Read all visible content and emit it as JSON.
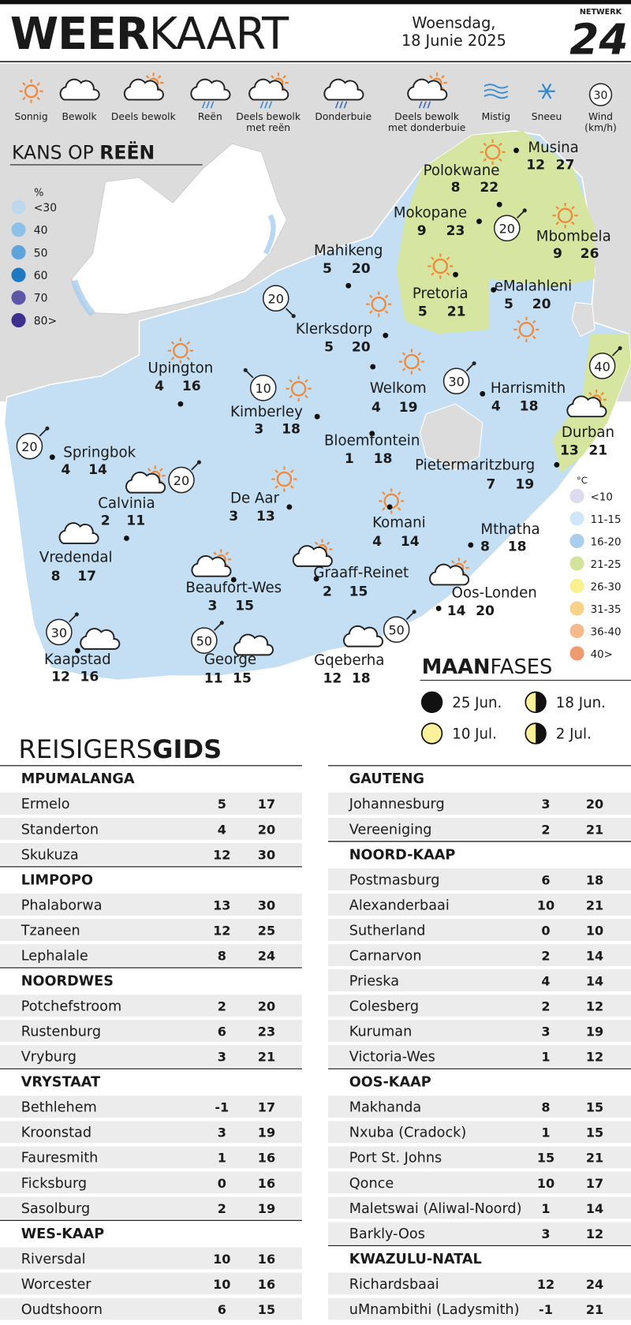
{
  "header": {
    "title_bold": "WEER",
    "title_light": "KAART",
    "date_line1": "Woensdag,",
    "date_line2": "18 Junie 2025",
    "brand_top": "NETWERK",
    "brand_number": "24"
  },
  "icon_legend": [
    {
      "label": [
        "Sonnig"
      ]
    },
    {
      "label": [
        "Bewolk"
      ]
    },
    {
      "label": [
        "Deels bewolk"
      ]
    },
    {
      "label": [
        "Reën"
      ]
    },
    {
      "label": [
        "Deels bewolk",
        "met reën"
      ]
    },
    {
      "label": [
        "Donderbuie"
      ]
    },
    {
      "label": [
        "Deels bewolk",
        "met donderbuie"
      ]
    },
    {
      "label": [
        "Mistig"
      ]
    },
    {
      "label": [
        "Sneeu"
      ]
    },
    {
      "label": [
        "Wind",
        "(km/h)"
      ],
      "sample": "30"
    }
  ],
  "rain_legend": {
    "title_light": "KANS OP ",
    "title_bold": "REËN",
    "unit": "%",
    "levels": [
      "<30",
      "40",
      "50",
      "60",
      "70",
      "80>"
    ]
  },
  "temp_legend": {
    "unit": "°C",
    "levels": [
      "<10",
      "11-15",
      "16-20",
      "21-25",
      "26-30",
      "31-35",
      "36-40",
      "40>"
    ]
  },
  "cities": [
    {
      "name": "Musina",
      "min": 12,
      "max": 27
    },
    {
      "name": "Polokwane",
      "min": 8,
      "max": 22
    },
    {
      "name": "Mokopane",
      "min": 9,
      "max": 23
    },
    {
      "name": "Mbombela",
      "min": 9,
      "max": 26
    },
    {
      "name": "Mahikeng",
      "min": 5,
      "max": 20
    },
    {
      "name": "Pretoria",
      "min": 5,
      "max": 21
    },
    {
      "name": "eMalahleni",
      "min": 5,
      "max": 20
    },
    {
      "name": "Klerksdorp",
      "min": 5,
      "max": 20
    },
    {
      "name": "Upington",
      "min": 4,
      "max": 16
    },
    {
      "name": "Welkom",
      "min": 4,
      "max": 19
    },
    {
      "name": "Harrismith",
      "min": 4,
      "max": 18
    },
    {
      "name": "Kimberley",
      "min": 3,
      "max": 18
    },
    {
      "name": "Durban",
      "min": 13,
      "max": 21
    },
    {
      "name": "Bloemfontein",
      "min": 1,
      "max": 18
    },
    {
      "name": "Springbok",
      "min": 4,
      "max": 14
    },
    {
      "name": "Pietermaritzburg",
      "min": 7,
      "max": 19
    },
    {
      "name": "Calvinia",
      "min": 2,
      "max": 11
    },
    {
      "name": "De Aar",
      "min": 3,
      "max": 13
    },
    {
      "name": "Komani",
      "min": 4,
      "max": 14
    },
    {
      "name": "Mthatha",
      "min": 8,
      "max": 18
    },
    {
      "name": "Vredendal",
      "min": 8,
      "max": 17
    },
    {
      "name": "Graaff-Reinet",
      "min": 2,
      "max": 15
    },
    {
      "name": "Beaufort-Wes",
      "min": 3,
      "max": 15
    },
    {
      "name": "Oos-Londen",
      "min": 14,
      "max": 20
    },
    {
      "name": "Kaapstad",
      "min": 12,
      "max": 16
    },
    {
      "name": "George",
      "min": 11,
      "max": 15
    },
    {
      "name": "Gqeberha",
      "min": 12,
      "max": 18
    }
  ],
  "wind": [
    "20",
    "20",
    "10",
    "30",
    "40",
    "20",
    "20",
    "30",
    "50",
    "50"
  ],
  "moon": {
    "title_bold": "MAAN",
    "title_light": "FASES",
    "phases": [
      {
        "date": "25 Jun."
      },
      {
        "date": "18 Jun."
      },
      {
        "date": "10 Jul."
      },
      {
        "date": "2 Jul."
      }
    ]
  },
  "guide": {
    "title_light": "REISIGERS",
    "title_bold": "GIDS",
    "columns": [
      [
        {
          "region": "MPUMALANGA",
          "rows": [
            [
              "Ermelo",
              5,
              17
            ],
            [
              "Standerton",
              4,
              20
            ],
            [
              "Skukuza",
              12,
              30
            ]
          ]
        },
        {
          "region": "LIMPOPO",
          "rows": [
            [
              "Phalaborwa",
              13,
              30
            ],
            [
              "Tzaneen",
              12,
              25
            ],
            [
              "Lephalale",
              8,
              24
            ]
          ]
        },
        {
          "region": "NOORDWES",
          "rows": [
            [
              "Potchefstroom",
              2,
              20
            ],
            [
              "Rustenburg",
              6,
              23
            ],
            [
              "Vryburg",
              3,
              21
            ]
          ]
        },
        {
          "region": "VRYSTAAT",
          "rows": [
            [
              "Bethlehem",
              -1,
              17
            ],
            [
              "Kroonstad",
              3,
              19
            ],
            [
              "Fauresmith",
              1,
              16
            ],
            [
              "Ficksburg",
              0,
              16
            ],
            [
              "Sasolburg",
              2,
              19
            ]
          ]
        },
        {
          "region": "WES-KAAP",
          "rows": [
            [
              "Riversdal",
              10,
              16
            ],
            [
              "Worcester",
              10,
              16
            ],
            [
              "Oudtshoorn",
              6,
              15
            ]
          ]
        }
      ],
      [
        {
          "region": "GAUTENG",
          "rows": [
            [
              "Johannesburg",
              3,
              20
            ],
            [
              "Vereeniging",
              2,
              21
            ]
          ]
        },
        {
          "region": "NOORD-KAAP",
          "rows": [
            [
              "Postmasburg",
              6,
              18
            ],
            [
              "Alexanderbaai",
              10,
              21
            ],
            [
              "Sutherland",
              0,
              10
            ],
            [
              "Carnarvon",
              2,
              14
            ],
            [
              "Prieska",
              4,
              14
            ],
            [
              "Colesberg",
              2,
              12
            ],
            [
              "Kuruman",
              3,
              19
            ],
            [
              "Victoria-Wes",
              1,
              12
            ]
          ]
        },
        {
          "region": "OOS-KAAP",
          "rows": [
            [
              "Makhanda",
              8,
              15
            ],
            [
              "Nxuba (Cradock)",
              1,
              15
            ],
            [
              "Port St. Johns",
              15,
              21
            ],
            [
              "Qonce",
              10,
              17
            ],
            [
              "Maletswai (Aliwal-Noord)",
              1,
              14
            ],
            [
              "Barkly-Oos",
              3,
              12
            ]
          ]
        },
        {
          "region": "KWAZULU-NATAL",
          "rows": [
            [
              "Richardsbaai",
              12,
              24
            ],
            [
              "uMnambithi (Ladysmith)",
              -1,
              21
            ]
          ]
        }
      ]
    ]
  }
}
